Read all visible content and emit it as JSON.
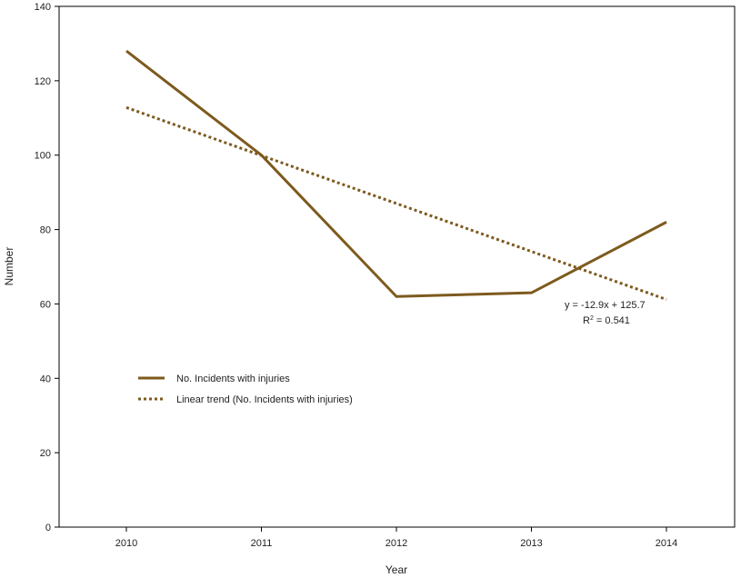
{
  "chart_data": {
    "type": "line",
    "title": "",
    "xlabel": "Year",
    "ylabel": "Number",
    "categories": [
      "2010",
      "2011",
      "2012",
      "2013",
      "2014"
    ],
    "ylim": [
      0,
      140
    ],
    "yticks": [
      0,
      20,
      40,
      60,
      80,
      100,
      120,
      140
    ],
    "grid": false,
    "legend_position": "center-left",
    "series": [
      {
        "name": "No. Incidents with injuries",
        "values": [
          128,
          100,
          62,
          63,
          82
        ],
        "style": "solid",
        "color": "#7d5a1e"
      },
      {
        "name": "Linear trend (No. Incidents with injuries)",
        "values": [
          112.8,
          99.9,
          87.0,
          74.1,
          61.2
        ],
        "style": "dotted",
        "color": "#7d5a1e"
      }
    ],
    "annotations": {
      "equation": "y = -12.9x + 125.7",
      "r_squared_prefix": "R",
      "r_squared_sup": "2",
      "r_squared_value": " = 0.541"
    }
  }
}
